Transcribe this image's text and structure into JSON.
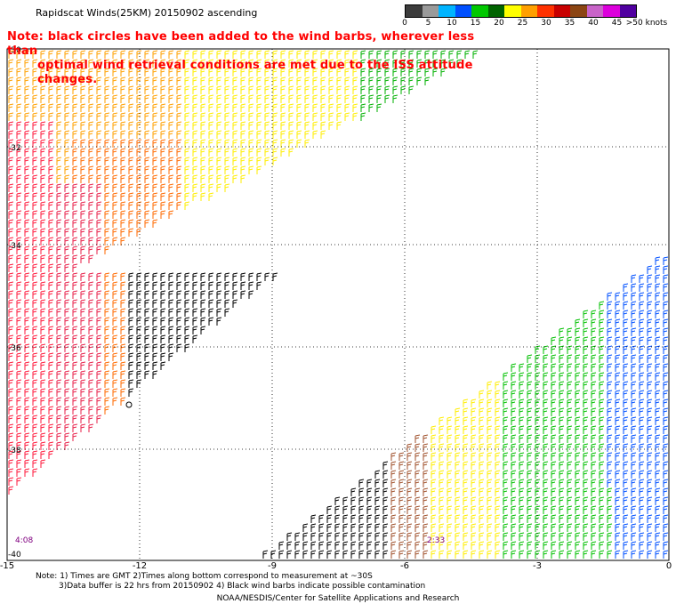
{
  "title": "Rapidscat Winds(25KM) 20150902 ascending",
  "note": {
    "line1": "Note: black circles have been added to the wind barbs, wherever less than",
    "line2": "optimal wind retrieval conditions are met due to the ISS attitude changes."
  },
  "legend": {
    "colors": [
      "#3c3c3c",
      "#9a9a9a",
      "#00b4ff",
      "#0050ff",
      "#00c800",
      "#006400",
      "#ffff00",
      "#ffa000",
      "#ff3200",
      "#c80000",
      "#8b4513",
      "#c864c8",
      "#dc00dc",
      "#5000a0"
    ],
    "labels": [
      "0",
      "5",
      "10",
      "15",
      "20",
      "25",
      "30",
      "35",
      "40",
      "45",
      ">50 knots"
    ]
  },
  "axes": {
    "lon_ticks": [
      "-15",
      "-12",
      "-9",
      "-6",
      "-3",
      "0"
    ],
    "lat_ticks": [
      "-30",
      "-32",
      "-34",
      "-36",
      "-38",
      "-40"
    ]
  },
  "time_labels": [
    "4:08",
    "2:33"
  ],
  "footnote": {
    "line1": "Note: 1) Times are GMT 2)Times along bottom correspond to measurement at ~30S",
    "line2": "3)Data buffer is 22 hrs from 20150902 4) Black wind barbs indicate possible contamination"
  },
  "credit": "NOAA/NESDIS/Center for Satellite Applications and Research"
}
